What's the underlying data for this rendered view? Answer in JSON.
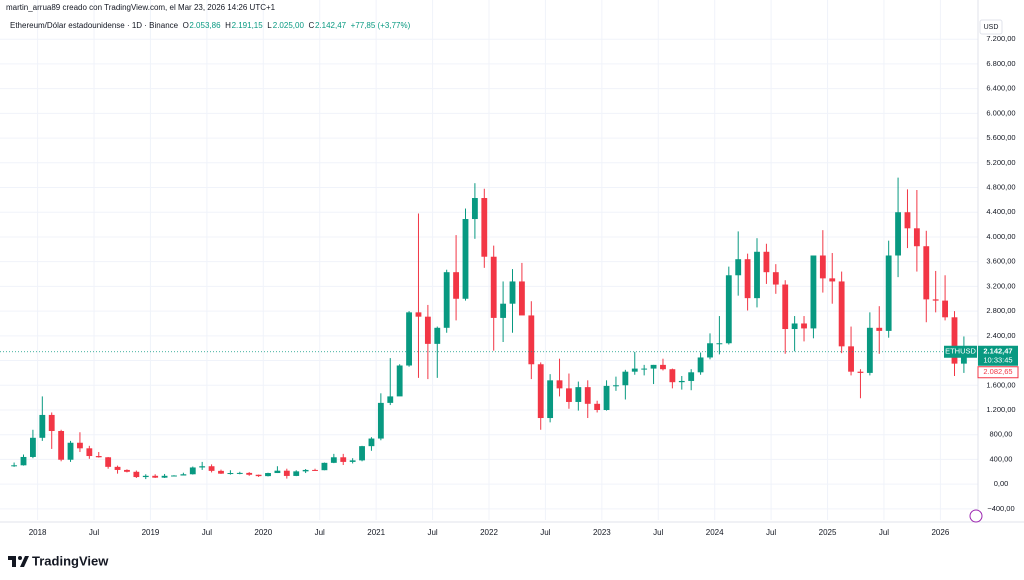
{
  "chart_data": {
    "type": "candlestick",
    "subtitle": "martin_arrua89 creado con TradingView.com, el Mar 23, 2026 14:26 UTC+1",
    "title": "Ethereum/Dólar estadounidense · 1D · Binance",
    "legend_values": [
      {
        "label": "O",
        "value": "2.053,86"
      },
      {
        "label": "H",
        "value": "2.191,15"
      },
      {
        "label": "L",
        "value": "2.025,00"
      },
      {
        "label": "C",
        "value": "2.142,47"
      }
    ],
    "change": "+77,85 (+3,77%)",
    "currency": "USD",
    "price_label": {
      "symbol": "ETHUSD",
      "price": "2.142,47",
      "countdown": "10:33:45"
    },
    "alt_price": "2.082,65",
    "logo": "TradingView",
    "up_color": "#089981",
    "down_color": "#f23645",
    "grid": true,
    "xlim": [
      "2017-09",
      "2026-05"
    ],
    "ylim": [
      -580,
      7640
    ],
    "xticks": [
      {
        "value": "2018-01",
        "label": "2018"
      },
      {
        "value": "2018-07",
        "label": "Jul"
      },
      {
        "value": "2019-01",
        "label": "2019"
      },
      {
        "value": "2019-07",
        "label": "Jul"
      },
      {
        "value": "2020-01",
        "label": "2020"
      },
      {
        "value": "2020-07",
        "label": "Jul"
      },
      {
        "value": "2021-01",
        "label": "2021"
      },
      {
        "value": "2021-07",
        "label": "Jul"
      },
      {
        "value": "2022-01",
        "label": "2022"
      },
      {
        "value": "2022-07",
        "label": "Jul"
      },
      {
        "value": "2023-01",
        "label": "2023"
      },
      {
        "value": "2023-07",
        "label": "Jul"
      },
      {
        "value": "2024-01",
        "label": "2024"
      },
      {
        "value": "2024-07",
        "label": "Jul"
      },
      {
        "value": "2025-01",
        "label": "2025"
      },
      {
        "value": "2025-07",
        "label": "Jul"
      },
      {
        "value": "2026-01",
        "label": "2026"
      }
    ],
    "yticks": [
      {
        "value": -400,
        "label": "−400,00"
      },
      {
        "value": 0,
        "label": "0,00"
      },
      {
        "value": 400,
        "label": "400,00"
      },
      {
        "value": 800,
        "label": "800,00"
      },
      {
        "value": 1200,
        "label": "1.200,00"
      },
      {
        "value": 1600,
        "label": "1.600,00"
      },
      {
        "value": 2000,
        "label": "2.000,00"
      },
      {
        "value": 2400,
        "label": "2.400,00"
      },
      {
        "value": 2800,
        "label": "2.800,00"
      },
      {
        "value": 3200,
        "label": "3.200,00"
      },
      {
        "value": 3600,
        "label": "3.600,00"
      },
      {
        "value": 4000,
        "label": "4.000,00"
      },
      {
        "value": 4400,
        "label": "4.400,00"
      },
      {
        "value": 4800,
        "label": "4.800,00"
      },
      {
        "value": 5200,
        "label": "5.200,00"
      },
      {
        "value": 5600,
        "label": "5.600,00"
      },
      {
        "value": 6000,
        "label": "6.000,00"
      },
      {
        "value": 6400,
        "label": "6.400,00"
      },
      {
        "value": 6800,
        "label": "6.800,00"
      },
      {
        "value": 7200,
        "label": "7.200,00"
      }
    ],
    "x": [
      "2017-10",
      "2017-11",
      "2017-12",
      "2018-01",
      "2018-02",
      "2018-03",
      "2018-04",
      "2018-05",
      "2018-06",
      "2018-07",
      "2018-08",
      "2018-09",
      "2018-10",
      "2018-11",
      "2018-12",
      "2019-01",
      "2019-02",
      "2019-03",
      "2019-04",
      "2019-05",
      "2019-06",
      "2019-07",
      "2019-08",
      "2019-09",
      "2019-10",
      "2019-11",
      "2019-12",
      "2020-01",
      "2020-02",
      "2020-03",
      "2020-04",
      "2020-05",
      "2020-06",
      "2020-07",
      "2020-08",
      "2020-09",
      "2020-10",
      "2020-11",
      "2020-12",
      "2021-01",
      "2021-02",
      "2021-03",
      "2021-04",
      "2021-05",
      "2021-06",
      "2021-07",
      "2021-08",
      "2021-09",
      "2021-10",
      "2021-11",
      "2021-12",
      "2022-01",
      "2022-02",
      "2022-03",
      "2022-04",
      "2022-05",
      "2022-06",
      "2022-07",
      "2022-08",
      "2022-09",
      "2022-10",
      "2022-11",
      "2022-12",
      "2023-01",
      "2023-02",
      "2023-03",
      "2023-04",
      "2023-05",
      "2023-06",
      "2023-07",
      "2023-08",
      "2023-09",
      "2023-10",
      "2023-11",
      "2023-12",
      "2024-01",
      "2024-02",
      "2024-03",
      "2024-04",
      "2024-05",
      "2024-06",
      "2024-07",
      "2024-08",
      "2024-09",
      "2024-10",
      "2024-11",
      "2024-12",
      "2025-01",
      "2025-02",
      "2025-03",
      "2025-04",
      "2025-05",
      "2025-06",
      "2025-07",
      "2025-08",
      "2025-09",
      "2025-10",
      "2025-11",
      "2025-12",
      "2026-01",
      "2026-02",
      "2026-03"
    ],
    "open": [
      300,
      305,
      440,
      750,
      1120,
      860,
      395,
      670,
      580,
      455,
      435,
      280,
      230,
      200,
      115,
      135,
      105,
      135,
      140,
      160,
      270,
      290,
      215,
      170,
      180,
      182,
      152,
      130,
      180,
      218,
      133,
      207,
      230,
      226,
      345,
      435,
      360,
      385,
      615,
      738,
      1315,
      1420,
      1920,
      2780,
      2710,
      2270,
      2530,
      3430,
      3000,
      4290,
      4630,
      3680,
      2690,
      2920,
      3280,
      2730,
      1940,
      1070,
      1680,
      1550,
      1330,
      1570,
      1300,
      1200,
      1590,
      1600,
      1820,
      1870,
      1870,
      1930,
      1860,
      1650,
      1670,
      1810,
      2050,
      2280,
      2280,
      3380,
      3640,
      3010,
      3760,
      3430,
      3230,
      2510,
      2600,
      2520,
      3700,
      3330,
      3280,
      2230,
      1820,
      1800,
      2530,
      2480,
      3700,
      4400,
      4140,
      3850,
      2990,
      2970,
      2700,
      1950
    ],
    "high": [
      350,
      480,
      880,
      1420,
      1160,
      880,
      700,
      840,
      620,
      520,
      440,
      300,
      240,
      220,
      160,
      160,
      165,
      145,
      185,
      285,
      360,
      320,
      235,
      225,
      200,
      195,
      155,
      185,
      290,
      250,
      225,
      245,
      250,
      350,
      490,
      490,
      420,
      620,
      760,
      1470,
      2040,
      1940,
      2800,
      4380,
      2900,
      2550,
      3470,
      4030,
      4460,
      4870,
      4780,
      3860,
      3280,
      3480,
      3580,
      2960,
      1970,
      1780,
      2030,
      1790,
      1660,
      1680,
      1350,
      1680,
      1740,
      1850,
      2140,
      1930,
      1930,
      2030,
      1870,
      1750,
      1860,
      2130,
      2440,
      2720,
      3520,
      4090,
      3730,
      3980,
      3890,
      3560,
      3300,
      2720,
      2720,
      3690,
      4110,
      3740,
      3440,
      2550,
      1860,
      2780,
      2880,
      3940,
      4960,
      4770,
      4760,
      4100,
      3450,
      3380,
      2800,
      2390
    ],
    "low": [
      280,
      300,
      420,
      700,
      570,
      370,
      360,
      520,
      410,
      430,
      250,
      170,
      190,
      100,
      82,
      100,
      100,
      125,
      140,
      155,
      230,
      190,
      165,
      155,
      160,
      135,
      117,
      125,
      180,
      90,
      130,
      180,
      215,
      225,
      340,
      310,
      335,
      370,
      540,
      710,
      1280,
      1430,
      1900,
      1720,
      1700,
      1720,
      2450,
      2650,
      2970,
      3970,
      3500,
      2160,
      2300,
      2450,
      2780,
      1700,
      880,
      1000,
      1420,
      1220,
      1190,
      1070,
      1160,
      1190,
      1510,
      1370,
      1770,
      1760,
      1620,
      1840,
      1550,
      1530,
      1520,
      1770,
      2020,
      2100,
      2260,
      3050,
      2810,
      2860,
      3240,
      3080,
      2110,
      2150,
      2310,
      2360,
      3100,
      2920,
      2120,
      1760,
      1390,
      1760,
      2110,
      2370,
      3350,
      3820,
      3440,
      2620,
      2780,
      2650,
      1750,
      1800
    ],
    "close": [
      305,
      440,
      750,
      1120,
      860,
      395,
      670,
      580,
      455,
      435,
      280,
      230,
      200,
      115,
      135,
      105,
      135,
      140,
      160,
      270,
      290,
      215,
      170,
      180,
      182,
      152,
      130,
      180,
      218,
      133,
      207,
      230,
      226,
      345,
      435,
      360,
      385,
      615,
      738,
      1315,
      1420,
      1920,
      2780,
      2710,
      2270,
      2530,
      3430,
      3000,
      4290,
      4630,
      3680,
      2690,
      2920,
      3280,
      2730,
      1940,
      1070,
      1680,
      1550,
      1330,
      1570,
      1300,
      1200,
      1590,
      1600,
      1820,
      1870,
      1870,
      1930,
      1860,
      1650,
      1670,
      1810,
      2050,
      2280,
      2280,
      3380,
      3640,
      3010,
      3760,
      3430,
      3230,
      2510,
      2600,
      2520,
      3700,
      3330,
      3280,
      2230,
      1820,
      1800,
      2530,
      2480,
      3700,
      4400,
      4140,
      3850,
      2990,
      2970,
      2700,
      1950,
      2142.47
    ]
  }
}
